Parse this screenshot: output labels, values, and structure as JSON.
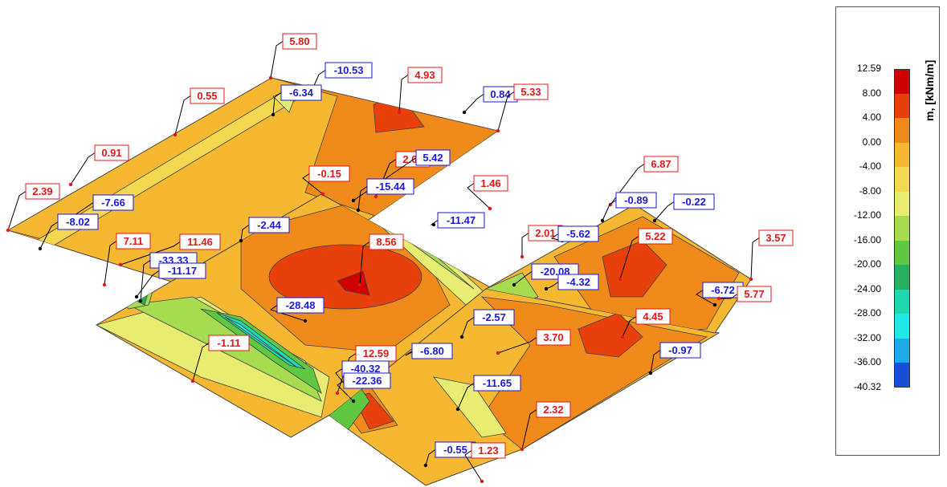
{
  "legend": {
    "title": "m, [kNm/m]",
    "ticks": [
      "12.59",
      "8.00",
      "4.00",
      "0.00",
      "-4.00",
      "-8.00",
      "-12.00",
      "-16.00",
      "-20.00",
      "-24.00",
      "-28.00",
      "-32.00",
      "-36.00",
      "-40.32"
    ],
    "colors": [
      "#d00000",
      "#e8400a",
      "#f08a1a",
      "#f6b830",
      "#f4d850",
      "#e8ec70",
      "#a8dc50",
      "#5ec840",
      "#28b060",
      "#20d8b0",
      "#20e8e8",
      "#1eaae8",
      "#1450d8",
      "#1c12c0"
    ]
  },
  "labels": [
    {
      "text": "5.80",
      "color": "red"
    },
    {
      "text": "-10.53",
      "color": "blue"
    },
    {
      "text": "4.93",
      "color": "red"
    },
    {
      "text": "-6.34",
      "color": "blue"
    },
    {
      "text": "0.55",
      "color": "red"
    },
    {
      "text": "0.84",
      "color": "blue"
    },
    {
      "text": "5.33",
      "color": "red"
    },
    {
      "text": "0.91",
      "color": "red"
    },
    {
      "text": "2.61",
      "color": "red"
    },
    {
      "text": "5.42",
      "color": "blue"
    },
    {
      "text": "-0.15",
      "color": "red"
    },
    {
      "text": "-15.44",
      "color": "blue"
    },
    {
      "text": "1.46",
      "color": "red"
    },
    {
      "text": "6.87",
      "color": "red"
    },
    {
      "text": "2.39",
      "color": "red"
    },
    {
      "text": "-7.66",
      "color": "blue"
    },
    {
      "text": "-0.89",
      "color": "blue"
    },
    {
      "text": "-0.22",
      "color": "blue"
    },
    {
      "text": "-8.02",
      "color": "blue"
    },
    {
      "text": "-2.44",
      "color": "blue"
    },
    {
      "text": "-11.47",
      "color": "blue"
    },
    {
      "text": "7.11",
      "color": "red"
    },
    {
      "text": "11.46",
      "color": "red"
    },
    {
      "text": "2.01",
      "color": "red"
    },
    {
      "text": "-5.62",
      "color": "blue"
    },
    {
      "text": "5.22",
      "color": "red"
    },
    {
      "text": "3.57",
      "color": "red"
    },
    {
      "text": "-33.33",
      "color": "blue"
    },
    {
      "text": "-11.17",
      "color": "blue"
    },
    {
      "text": "8.56",
      "color": "red"
    },
    {
      "text": "-20.08",
      "color": "blue"
    },
    {
      "text": "-4.32",
      "color": "blue"
    },
    {
      "text": "-6.72",
      "color": "blue"
    },
    {
      "text": "5.77",
      "color": "red"
    },
    {
      "text": "-28.48",
      "color": "blue"
    },
    {
      "text": "-2.57",
      "color": "blue"
    },
    {
      "text": "4.45",
      "color": "red"
    },
    {
      "text": "-1.11",
      "color": "red"
    },
    {
      "text": "3.70",
      "color": "red"
    },
    {
      "text": "-0.97",
      "color": "blue"
    },
    {
      "text": "12.59",
      "color": "red"
    },
    {
      "text": "-40.32",
      "color": "blue"
    },
    {
      "text": "-6.80",
      "color": "blue"
    },
    {
      "text": "-22.36",
      "color": "blue"
    },
    {
      "text": "-11.65",
      "color": "blue"
    },
    {
      "text": "2.32",
      "color": "red"
    },
    {
      "text": "-0.55",
      "color": "blue"
    },
    {
      "text": "1.23",
      "color": "red"
    }
  ]
}
